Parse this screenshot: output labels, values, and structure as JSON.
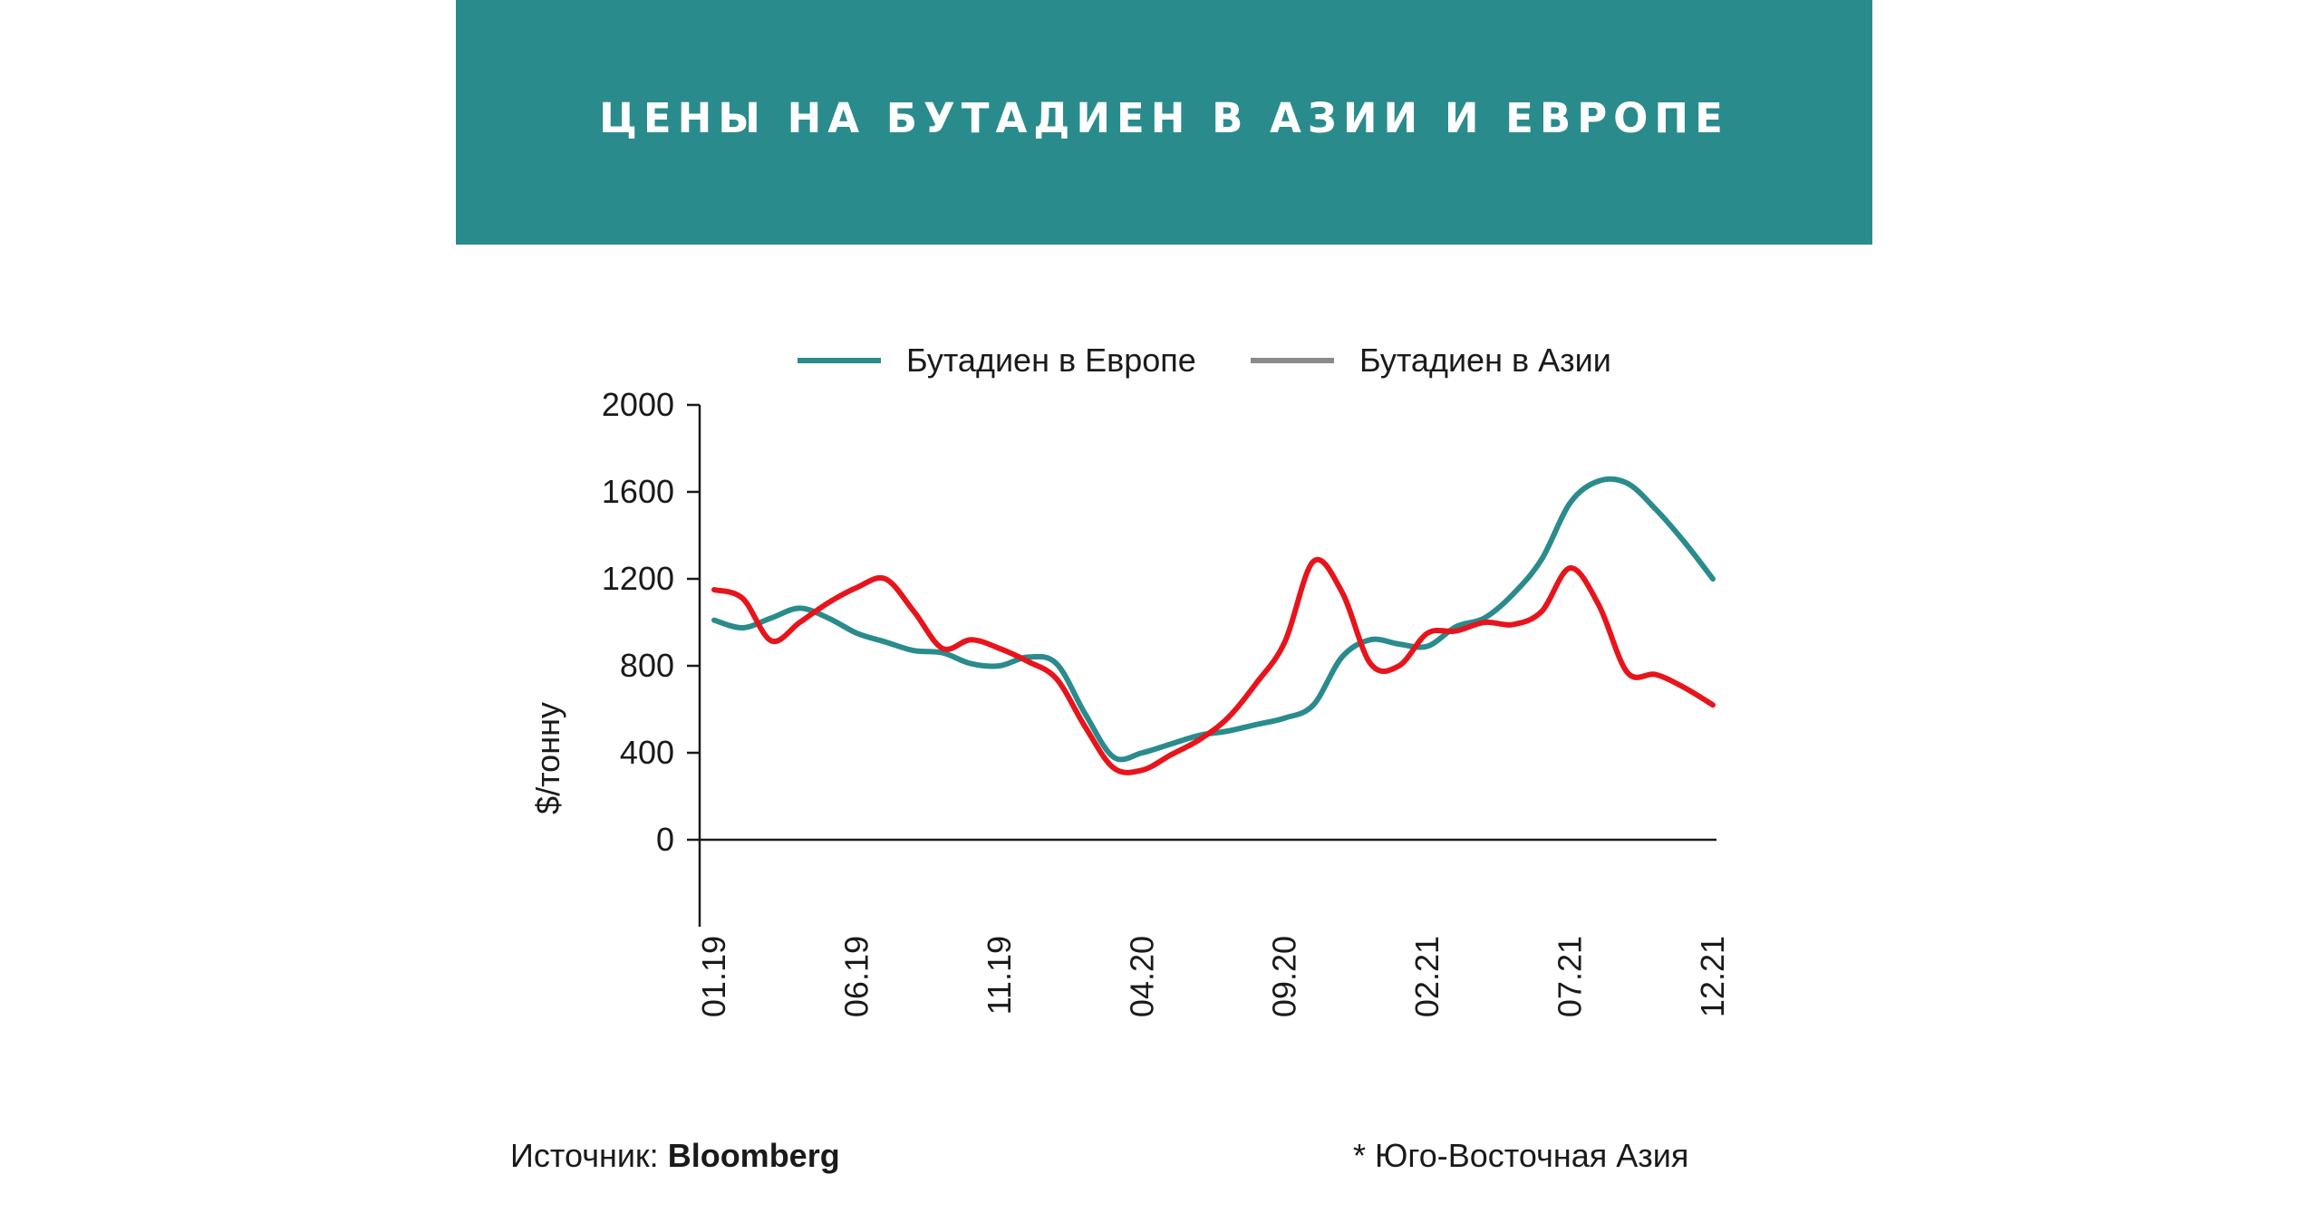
{
  "header": {
    "title": "ЦЕНЫ НА БУТАДИЕН В АЗИИ И ЕВРОПЕ"
  },
  "footer": {
    "source_label": "Источник: ",
    "source_name": "Bloomberg",
    "note": "* Юго-Восточная Азия"
  },
  "colors": {
    "header_bg": "#2a8b8c",
    "europe": "#2a8b8c",
    "asia": "#e8141c",
    "asia_legend": "#8a8a8a",
    "axis": "#1a1a1a"
  },
  "chart_data": {
    "type": "line",
    "ylabel": "$/тонну",
    "ylim": [
      -400,
      2000
    ],
    "yticks": [
      0,
      400,
      800,
      1200,
      1600,
      2000
    ],
    "x_range": [
      "01.19",
      "12.21"
    ],
    "xtick_labels": [
      "01.19",
      "06.19",
      "11.19",
      "04.20",
      "09.20",
      "02.21",
      "07.21",
      "12.21"
    ],
    "grid": false,
    "legend_position": "top",
    "series": [
      {
        "name": "Бутадиен в Европе",
        "color": "#2a8b8c",
        "x": [
          "01.19",
          "02.19",
          "03.19",
          "04.19",
          "05.19",
          "06.19",
          "07.19",
          "08.19",
          "09.19",
          "10.19",
          "11.19",
          "12.19",
          "01.20",
          "02.20",
          "03.20",
          "04.20",
          "05.20",
          "06.20",
          "07.20",
          "08.20",
          "09.20",
          "10.20",
          "11.20",
          "12.20",
          "01.21",
          "02.21",
          "03.21",
          "04.21",
          "05.21",
          "06.21",
          "07.21",
          "08.21",
          "09.21",
          "10.21",
          "11.21",
          "12.21"
        ],
        "y": [
          1010,
          975,
          1020,
          1065,
          1020,
          950,
          910,
          870,
          860,
          810,
          800,
          840,
          810,
          580,
          380,
          400,
          440,
          480,
          500,
          530,
          560,
          620,
          840,
          920,
          900,
          890,
          980,
          1020,
          1130,
          1290,
          1550,
          1650,
          1640,
          1520,
          1370,
          1200
        ]
      },
      {
        "name": "Бутадиен в Азии",
        "color": "#e8141c",
        "x": [
          "01.19",
          "02.19",
          "03.19",
          "04.19",
          "05.19",
          "06.19",
          "07.19",
          "08.19",
          "09.19",
          "10.19",
          "11.19",
          "12.19",
          "01.20",
          "02.20",
          "03.20",
          "04.20",
          "05.20",
          "06.20",
          "07.20",
          "08.20",
          "09.20",
          "10.20",
          "11.20",
          "12.20",
          "01.21",
          "02.21",
          "03.21",
          "04.21",
          "05.21",
          "06.21",
          "07.21",
          "08.21",
          "09.21",
          "10.21",
          "11.21",
          "12.21"
        ],
        "y": [
          1150,
          1110,
          915,
          1000,
          1090,
          1160,
          1200,
          1050,
          880,
          920,
          880,
          820,
          740,
          520,
          330,
          320,
          390,
          460,
          560,
          720,
          910,
          1280,
          1140,
          810,
          800,
          950,
          960,
          1000,
          990,
          1050,
          1250,
          1080,
          770,
          760,
          700,
          620
        ]
      }
    ]
  }
}
